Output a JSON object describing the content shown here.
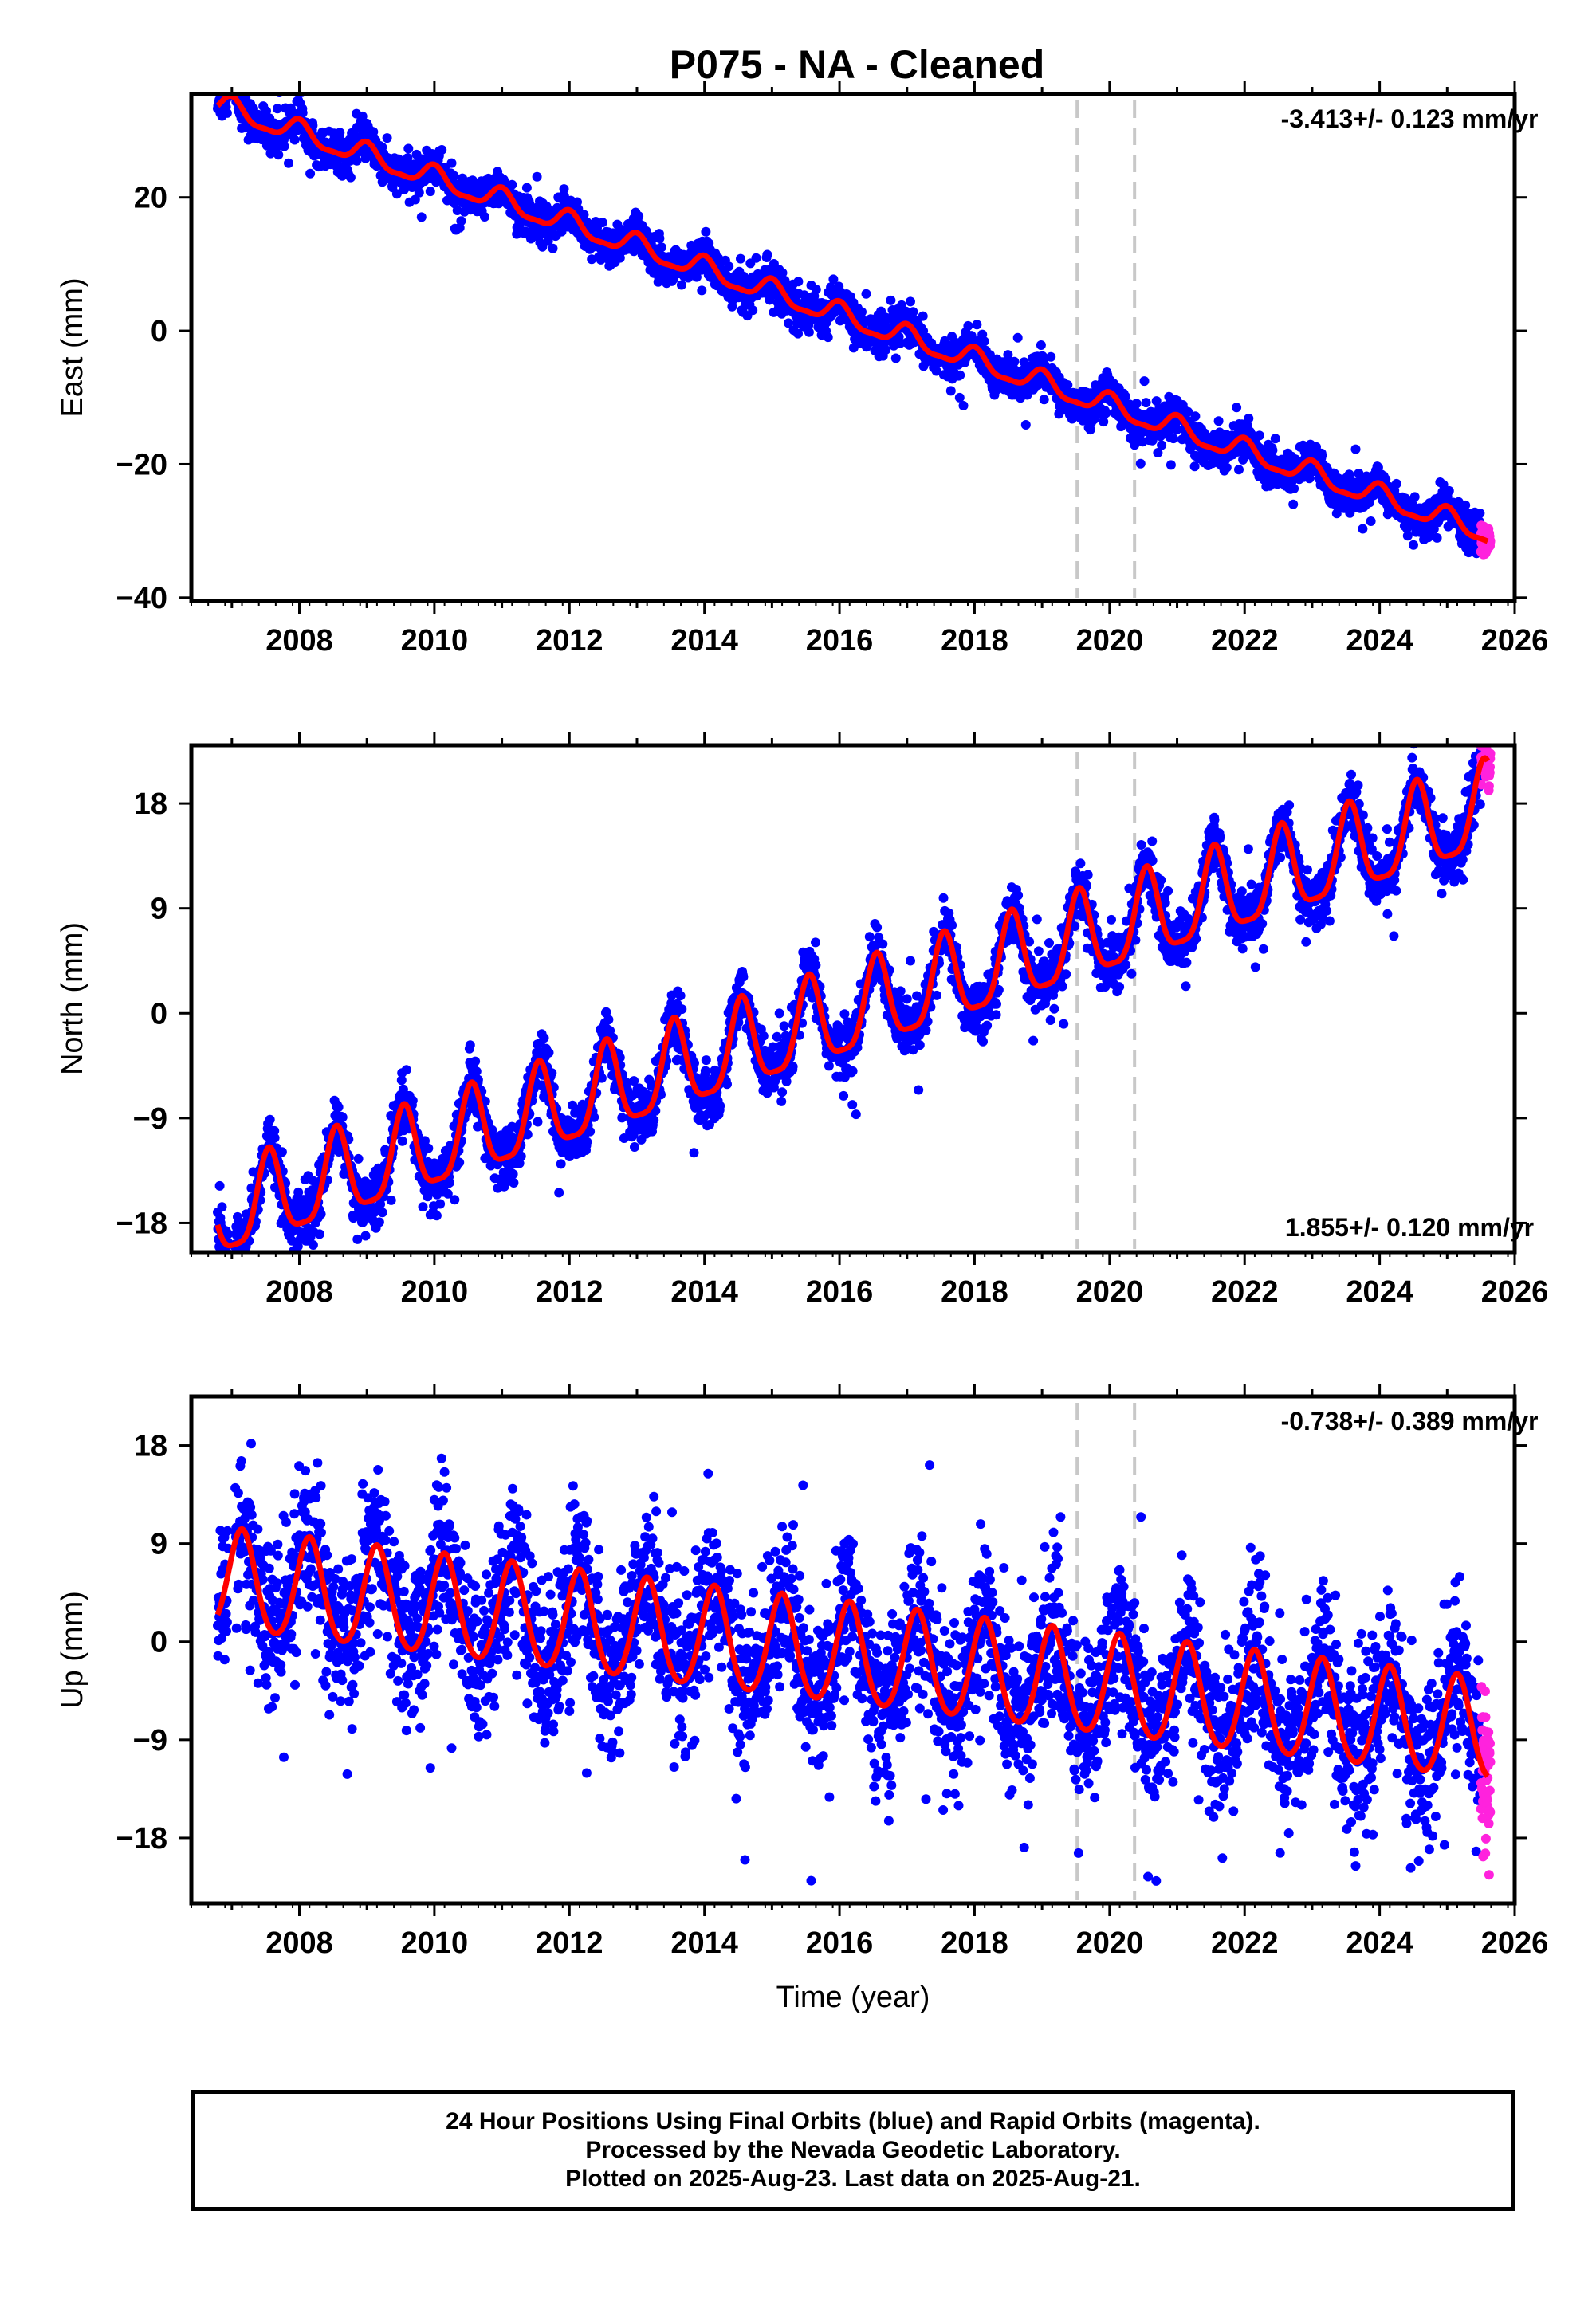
{
  "title": "P075  - NA - Cleaned",
  "chart_data": [
    {
      "type": "scatter",
      "panel": "east",
      "ylabel": "East (mm)",
      "xlabel": "",
      "xlim": [
        2006.4,
        2026.0
      ],
      "ylim": [
        -40.5,
        35.5
      ],
      "xticks": [
        2008,
        2010,
        2012,
        2014,
        2016,
        2018,
        2020,
        2022,
        2024,
        2026
      ],
      "yticks": [
        20,
        0,
        -20,
        -40
      ],
      "rate_label": "-3.413+/- 0.123 mm/yr",
      "rate_position": "top-right",
      "events": [
        2019.52,
        2020.37
      ],
      "model": {
        "t0": 2006.79,
        "start": 33.8,
        "end": 2025.6,
        "rate": -3.413,
        "annual_amp": 1.6,
        "annual_phase": 0.0,
        "semiannual_amp": 0.5
      },
      "scatter_noise": 1.4,
      "series": [
        {
          "name": "Final Orbits",
          "color": "#0000ff",
          "x_range": [
            2006.79,
            2025.5
          ]
        },
        {
          "name": "Rapid Orbits",
          "color": "#ff22dd",
          "x_range": [
            2025.5,
            2025.64
          ]
        },
        {
          "name": "Model",
          "color": "#ff0000"
        }
      ]
    },
    {
      "type": "scatter",
      "panel": "north",
      "ylabel": "North (mm)",
      "xlabel": "",
      "xlim": [
        2006.4,
        2026.0
      ],
      "ylim": [
        -20.5,
        23.0
      ],
      "xticks": [
        2008,
        2010,
        2012,
        2014,
        2016,
        2018,
        2020,
        2022,
        2024,
        2026
      ],
      "yticks": [
        18,
        9,
        0,
        -9,
        -18
      ],
      "rate_label": "1.855+/- 0.120 mm/yr",
      "rate_position": "bottom-right",
      "events": [
        2019.52,
        2020.37
      ],
      "model": {
        "t0": 2006.79,
        "start": -17.5,
        "end": 2025.6,
        "rate": 1.855,
        "annual_amp": 3.7,
        "annual_phase": 0.55,
        "semiannual_amp": 0.9
      },
      "scatter_noise": 1.2,
      "series": [
        {
          "name": "Final Orbits",
          "color": "#0000ff",
          "x_range": [
            2006.79,
            2025.5
          ]
        },
        {
          "name": "Rapid Orbits",
          "color": "#ff22dd",
          "x_range": [
            2025.5,
            2025.64
          ]
        },
        {
          "name": "Model",
          "color": "#ff0000"
        }
      ]
    },
    {
      "type": "scatter",
      "panel": "up",
      "ylabel": "Up (mm)",
      "xlabel": "Time (year)",
      "xlim": [
        2006.4,
        2026.0
      ],
      "ylim": [
        -24.0,
        22.5
      ],
      "xticks": [
        2008,
        2010,
        2012,
        2014,
        2016,
        2018,
        2020,
        2022,
        2024,
        2026
      ],
      "yticks": [
        18,
        9,
        0,
        -9,
        -18
      ],
      "rate_label": "-0.738+/- 0.389 mm/yr",
      "rate_position": "top-right",
      "events": [
        2019.52,
        2020.37
      ],
      "model": {
        "t0": 2006.79,
        "start": 5.5,
        "end": 2025.6,
        "rate": -0.738,
        "annual_amp": 4.6,
        "annual_phase": 0.15,
        "semiannual_amp": 0.5
      },
      "scatter_noise": 3.6,
      "series": [
        {
          "name": "Final Orbits",
          "color": "#0000ff",
          "x_range": [
            2006.79,
            2025.5
          ]
        },
        {
          "name": "Rapid Orbits",
          "color": "#ff22dd",
          "x_range": [
            2025.5,
            2025.64
          ]
        },
        {
          "name": "Model",
          "color": "#ff0000"
        }
      ]
    }
  ],
  "footer": {
    "line1": "24 Hour Positions Using Final Orbits (blue) and Rapid Orbits (magenta).",
    "line2": "Processed by the Nevada Geodetic Laboratory.",
    "line3": "Plotted on 2025-Aug-23. Last data on 2025-Aug-21."
  }
}
